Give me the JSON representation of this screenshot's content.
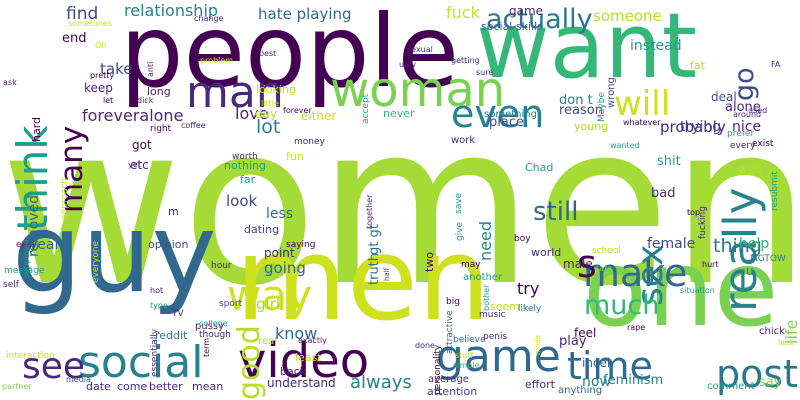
{
  "words": [
    {
      "text": "women",
      "color": "#a5db36",
      "vertical": false
    },
    {
      "text": "people",
      "color": "#440154",
      "vertical": false
    },
    {
      "text": "want",
      "color": "#35b779",
      "vertical": false
    },
    {
      "text": "guy",
      "color": "#31688e",
      "vertical": false
    },
    {
      "text": "men",
      "color": "#cde11d",
      "vertical": false
    },
    {
      "text": "one",
      "color": "#7ad151",
      "vertical": false
    },
    {
      "text": "video",
      "color": "#440154",
      "vertical": false
    },
    {
      "text": "game",
      "color": "#31688e",
      "vertical": false
    },
    {
      "text": "social",
      "color": "#26828e",
      "vertical": false
    },
    {
      "text": "woman",
      "color": "#7ad151",
      "vertical": false
    },
    {
      "text": "man",
      "color": "#482878",
      "vertical": false
    },
    {
      "text": "even",
      "color": "#26828e",
      "vertical": false
    },
    {
      "text": "think",
      "color": "#1f9e89",
      "vertical": true
    },
    {
      "text": "really",
      "color": "#26828e",
      "vertical": true
    },
    {
      "text": "time",
      "color": "#31688e",
      "vertical": false
    },
    {
      "text": "make",
      "color": "#31688e",
      "vertical": false
    },
    {
      "text": "way",
      "color": "#cde11d",
      "vertical": false
    },
    {
      "text": "sex",
      "color": "#26828e",
      "vertical": true
    },
    {
      "text": "post",
      "color": "#2a788e",
      "vertical": false
    },
    {
      "text": "see",
      "color": "#482878",
      "vertical": false
    },
    {
      "text": "good",
      "color": "#b5de2b",
      "vertical": true
    },
    {
      "text": "will",
      "color": "#cde11d",
      "vertical": false
    },
    {
      "text": "much",
      "color": "#35b779",
      "vertical": false
    },
    {
      "text": "still",
      "color": "#31688e",
      "vertical": false
    },
    {
      "text": "many",
      "color": "#440154",
      "vertical": true
    },
    {
      "text": "actually",
      "color": "#2a788e",
      "vertical": false
    },
    {
      "text": "go",
      "color": "#3e4a89",
      "vertical": true
    },
    {
      "text": "s",
      "color": "#440154",
      "vertical": false
    },
    {
      "text": "thing",
      "color": "#2a788e",
      "vertical": false
    },
    {
      "text": "lot",
      "color": "#26828e",
      "vertical": false
    },
    {
      "text": "love",
      "color": "#482878",
      "vertical": false
    },
    {
      "text": "find",
      "color": "#3e4a89",
      "vertical": false
    },
    {
      "text": "relationship",
      "color": "#26828e",
      "vertical": false
    },
    {
      "text": "hate playing",
      "color": "#31688e",
      "vertical": false
    },
    {
      "text": "foreveralone",
      "color": "#482878",
      "vertical": false
    },
    {
      "text": "know",
      "color": "#31688e",
      "vertical": false
    },
    {
      "text": "someone",
      "color": "#b5de2b",
      "vertical": false
    },
    {
      "text": "fuck",
      "color": "#cde11d",
      "vertical": false
    },
    {
      "text": "probably",
      "color": "#482878",
      "vertical": false
    },
    {
      "text": "always",
      "color": "#26828e",
      "vertical": false
    },
    {
      "text": "look",
      "color": "#3e4a89",
      "vertical": false
    },
    {
      "text": "going",
      "color": "#31688e",
      "vertical": false
    },
    {
      "text": "female",
      "color": "#3e4a89",
      "vertical": false
    },
    {
      "text": "girl",
      "color": "#a5db36",
      "vertical": false
    },
    {
      "text": "life",
      "color": "#7ad151",
      "vertical": true
    },
    {
      "text": "need",
      "color": "#26828e",
      "vertical": true
    },
    {
      "text": "try",
      "color": "#440154",
      "vertical": false
    },
    {
      "text": "removed",
      "color": "#31688e",
      "vertical": true
    },
    {
      "text": "year",
      "color": "#31688e",
      "vertical": false
    },
    {
      "text": "help",
      "color": "#35b779",
      "vertical": false
    },
    {
      "text": "take",
      "color": "#3e4a89",
      "vertical": false
    },
    {
      "text": "trying",
      "color": "#3e4a89",
      "vertical": false
    },
    {
      "text": "don t",
      "color": "#26828e",
      "vertical": false
    },
    {
      "text": "say",
      "color": "#7ad151",
      "vertical": false
    },
    {
      "text": "bad",
      "color": "#482878",
      "vertical": false
    },
    {
      "text": "nice",
      "color": "#482878",
      "vertical": false
    },
    {
      "text": "instead",
      "color": "#1f9e89",
      "vertical": false
    },
    {
      "text": "end",
      "color": "#440154",
      "vertical": false
    },
    {
      "text": "keep",
      "color": "#482878",
      "vertical": false
    },
    {
      "text": "alone",
      "color": "#482878",
      "vertical": false
    },
    {
      "text": "deal",
      "color": "#3e4a89",
      "vertical": false
    },
    {
      "text": "play",
      "color": "#482878",
      "vertical": false
    },
    {
      "text": "now",
      "color": "#26828e",
      "vertical": false
    },
    {
      "text": "place",
      "color": "#3e4a89",
      "vertical": false
    },
    {
      "text": "reason",
      "color": "#3e4a89",
      "vertical": false
    },
    {
      "text": "got",
      "color": "#440154",
      "vertical": false
    },
    {
      "text": "etc",
      "color": "#482878",
      "vertical": false
    },
    {
      "text": "shit",
      "color": "#1f9e89",
      "vertical": false
    },
    {
      "text": "feel",
      "color": "#440154",
      "vertical": false
    },
    {
      "text": "male",
      "color": "#482878",
      "vertical": false
    },
    {
      "text": "incel",
      "color": "#31688e",
      "vertical": false
    },
    {
      "text": "less",
      "color": "#31688e",
      "vertical": false
    },
    {
      "text": "truth",
      "color": "#2a788e",
      "vertical": true
    },
    {
      "text": "gt gt",
      "color": "#2a788e",
      "vertical": true
    },
    {
      "text": "point",
      "color": "#482878",
      "vertical": false
    },
    {
      "text": "feminism",
      "color": "#26828e",
      "vertical": false
    },
    {
      "text": "game",
      "color": "#482878",
      "vertical": false
    },
    {
      "text": "social skills",
      "color": "#31688e",
      "vertical": false
    },
    {
      "text": "Chad",
      "color": "#1f9e89",
      "vertical": false
    },
    {
      "text": "young",
      "color": "#b5de2b",
      "vertical": false
    },
    {
      "text": "world",
      "color": "#482878",
      "vertical": false
    },
    {
      "text": "comment",
      "color": "#1f9e89",
      "vertical": false
    },
    {
      "text": "two",
      "color": "#440154",
      "vertical": true
    },
    {
      "text": "average",
      "color": "#482878",
      "vertical": false
    },
    {
      "text": "effort",
      "color": "#482878",
      "vertical": false
    },
    {
      "text": "opinion",
      "color": "#3e4a89",
      "vertical": false
    },
    {
      "text": "nothing",
      "color": "#1f9e89",
      "vertical": false
    },
    {
      "text": "far",
      "color": "#1f9e89",
      "vertical": false
    },
    {
      "text": "dating",
      "color": "#3e4a89",
      "vertical": false
    },
    {
      "text": "understand",
      "color": "#482878",
      "vertical": false
    },
    {
      "text": "m",
      "color": "#482878",
      "vertical": false
    },
    {
      "text": "day",
      "color": "#b5de2b",
      "vertical": false
    },
    {
      "text": "either",
      "color": "#cde11d",
      "vertical": false
    },
    {
      "text": "never",
      "color": "#35b779",
      "vertical": false
    },
    {
      "text": "something",
      "color": "#2a788e",
      "vertical": false
    },
    {
      "text": "looking",
      "color": "#cde11d",
      "vertical": false
    },
    {
      "text": "work",
      "color": "#482878",
      "vertical": false
    },
    {
      "text": "fat",
      "color": "#b5de2b",
      "vertical": false
    },
    {
      "text": "wrong",
      "color": "#3e4a89",
      "vertical": true
    },
    {
      "text": "fun",
      "color": "#cde11d",
      "vertical": false
    },
    {
      "text": "attention",
      "color": "#3e4a89",
      "vertical": false
    },
    {
      "text": "seem",
      "color": "#b5de2b",
      "vertical": false
    },
    {
      "text": "pussy",
      "color": "#482878",
      "vertical": false
    },
    {
      "text": "hard",
      "color": "#440154",
      "vertical": true
    },
    {
      "text": "long",
      "color": "#482878",
      "vertical": false
    },
    {
      "text": "reddit",
      "color": "#2a788e",
      "vertical": false
    },
    {
      "text": "better",
      "color": "#482878",
      "vertical": false
    },
    {
      "text": "come",
      "color": "#482878",
      "vertical": false
    },
    {
      "text": "date",
      "color": "#482878",
      "vertical": false
    },
    {
      "text": "mean",
      "color": "#482878",
      "vertical": false
    },
    {
      "text": "back",
      "color": "#482878",
      "vertical": false
    },
    {
      "text": "least",
      "color": "#cde11d",
      "vertical": false
    },
    {
      "text": "anything",
      "color": "#31688e",
      "vertical": false
    },
    {
      "text": "resubmit",
      "color": "#1f9e89",
      "vertical": true
    },
    {
      "text": "Maybe",
      "color": "#1f9e89",
      "vertical": true
    },
    {
      "text": "every",
      "color": "#482878",
      "vertical": false
    },
    {
      "text": "well",
      "color": "#b5de2b",
      "vertical": false
    },
    {
      "text": "exist",
      "color": "#440154",
      "vertical": false
    },
    {
      "text": "prefer",
      "color": "#1f9e89",
      "vertical": false
    },
    {
      "text": "give",
      "color": "#1f9e89",
      "vertical": true
    },
    {
      "text": "save",
      "color": "#1f9e89",
      "vertical": true
    },
    {
      "text": "MGTOW",
      "color": "#2a788e",
      "vertical": false
    },
    {
      "text": "u",
      "color": "#2a788e",
      "vertical": false
    },
    {
      "text": "sport",
      "color": "#3e4a89",
      "vertical": false
    },
    {
      "text": "real",
      "color": "#b5de2b",
      "vertical": false
    },
    {
      "text": "saying",
      "color": "#440154",
      "vertical": false
    },
    {
      "text": "hour",
      "color": "#482878",
      "vertical": false
    },
    {
      "text": "approach",
      "color": "#b5de2b",
      "vertical": true
    },
    {
      "text": "everyone",
      "color": "#cde11d",
      "vertical": true
    },
    {
      "text": "easy",
      "color": "#482878",
      "vertical": false
    },
    {
      "text": "message",
      "color": "#1f9e89",
      "vertical": false
    },
    {
      "text": "self",
      "color": "#482878",
      "vertical": false
    },
    {
      "text": "interaction",
      "color": "#cde11d",
      "vertical": false
    },
    {
      "text": "media",
      "color": "#3e4a89",
      "vertical": false
    },
    {
      "text": "partner",
      "color": "#7ad151",
      "vertical": false
    },
    {
      "text": "TV",
      "color": "#482878",
      "vertical": false
    },
    {
      "text": "hot",
      "color": "#482878",
      "vertical": false
    },
    {
      "text": "type",
      "color": "#1f9e89",
      "vertical": false
    },
    {
      "text": "essentially",
      "color": "#482878",
      "vertical": true
    },
    {
      "text": "college",
      "color": "#1f9e89",
      "vertical": false
    },
    {
      "text": "though",
      "color": "#482878",
      "vertical": false
    },
    {
      "text": "exactly",
      "color": "#482878",
      "vertical": false
    },
    {
      "text": "simple",
      "color": "#35b779",
      "vertical": false
    },
    {
      "text": "done",
      "color": "#482878",
      "vertical": false
    },
    {
      "text": "stuff",
      "color": "#cde11d",
      "vertical": false
    },
    {
      "text": "music",
      "color": "#482878",
      "vertical": false
    },
    {
      "text": "big",
      "color": "#440154",
      "vertical": false
    },
    {
      "text": "believe",
      "color": "#31688e",
      "vertical": false
    },
    {
      "text": "penis",
      "color": "#482878",
      "vertical": false
    },
    {
      "text": "likely",
      "color": "#2a788e",
      "vertical": false
    },
    {
      "text": "bother",
      "color": "#1f9e89",
      "vertical": true
    },
    {
      "text": "personality",
      "color": "#440154",
      "vertical": true
    },
    {
      "text": "attractive",
      "color": "#31688e",
      "vertical": true
    },
    {
      "text": "half",
      "color": "#3e4a89",
      "vertical": true
    },
    {
      "text": "term",
      "color": "#440154",
      "vertical": true
    },
    {
      "text": "mode",
      "color": "#cde11d",
      "vertical": true
    },
    {
      "text": "another",
      "color": "#1f9e89",
      "vertical": false
    },
    {
      "text": "may",
      "color": "#440154",
      "vertical": false
    },
    {
      "text": "boy",
      "color": "#440154",
      "vertical": false
    },
    {
      "text": "school",
      "color": "#b5de2b",
      "vertical": false
    },
    {
      "text": "safe",
      "color": "#7ad151",
      "vertical": false
    },
    {
      "text": "situation",
      "color": "#1f9e89",
      "vertical": false
    },
    {
      "text": "hurt",
      "color": "#440154",
      "vertical": false
    },
    {
      "text": "rape",
      "color": "#440154",
      "vertical": false
    },
    {
      "text": "chick",
      "color": "#482878",
      "vertical": false
    },
    {
      "text": "lack",
      "color": "#cde11d",
      "vertical": false
    },
    {
      "text": "top",
      "color": "#440154",
      "vertical": false
    },
    {
      "text": "fucking",
      "color": "#482878",
      "vertical": true
    },
    {
      "text": "used",
      "color": "#482878",
      "vertical": false
    },
    {
      "text": "around",
      "color": "#482878",
      "vertical": false
    },
    {
      "text": "whatever",
      "color": "#440154",
      "vertical": false
    },
    {
      "text": "wanted",
      "color": "#1f9e89",
      "vertical": false
    },
    {
      "text": "worth",
      "color": "#482878",
      "vertical": false
    },
    {
      "text": "money",
      "color": "#482878",
      "vertical": false
    },
    {
      "text": "together",
      "color": "#482878",
      "vertical": true
    },
    {
      "text": "supposed",
      "color": "#1f9e89",
      "vertical": true
    },
    {
      "text": "yet",
      "color": "#482878",
      "vertical": false
    },
    {
      "text": "right",
      "color": "#440154",
      "vertical": false
    },
    {
      "text": "coffee",
      "color": "#482878",
      "vertical": false
    },
    {
      "text": "forever",
      "color": "#440154",
      "vertical": false
    },
    {
      "text": "little",
      "color": "#cde11d",
      "vertical": false
    },
    {
      "text": "let",
      "color": "#440154",
      "vertical": false
    },
    {
      "text": "dick",
      "color": "#482878",
      "vertical": false
    },
    {
      "text": "pretty",
      "color": "#440154",
      "vertical": false
    },
    {
      "text": "anti",
      "color": "#482878",
      "vertical": true
    },
    {
      "text": "best",
      "color": "#482878",
      "vertical": false
    },
    {
      "text": "problem",
      "color": "#cde11d",
      "vertical": false
    },
    {
      "text": "accept",
      "color": "#1f9e89",
      "vertical": true
    },
    {
      "text": "sure",
      "color": "#482878",
      "vertical": false
    },
    {
      "text": "getting",
      "color": "#482878",
      "vertical": false
    },
    {
      "text": "ugly",
      "color": "#482878",
      "vertical": false
    },
    {
      "text": "sexual",
      "color": "#482878",
      "vertical": false
    },
    {
      "text": "change",
      "color": "#482878",
      "vertical": false
    },
    {
      "text": "sometimes",
      "color": "#cde11d",
      "vertical": false
    },
    {
      "text": "Oh",
      "color": "#cde11d",
      "vertical": false
    },
    {
      "text": "ask",
      "color": "#482878",
      "vertical": false
    },
    {
      "text": "FA",
      "color": "#482878",
      "vertical": false
    }
  ]
}
